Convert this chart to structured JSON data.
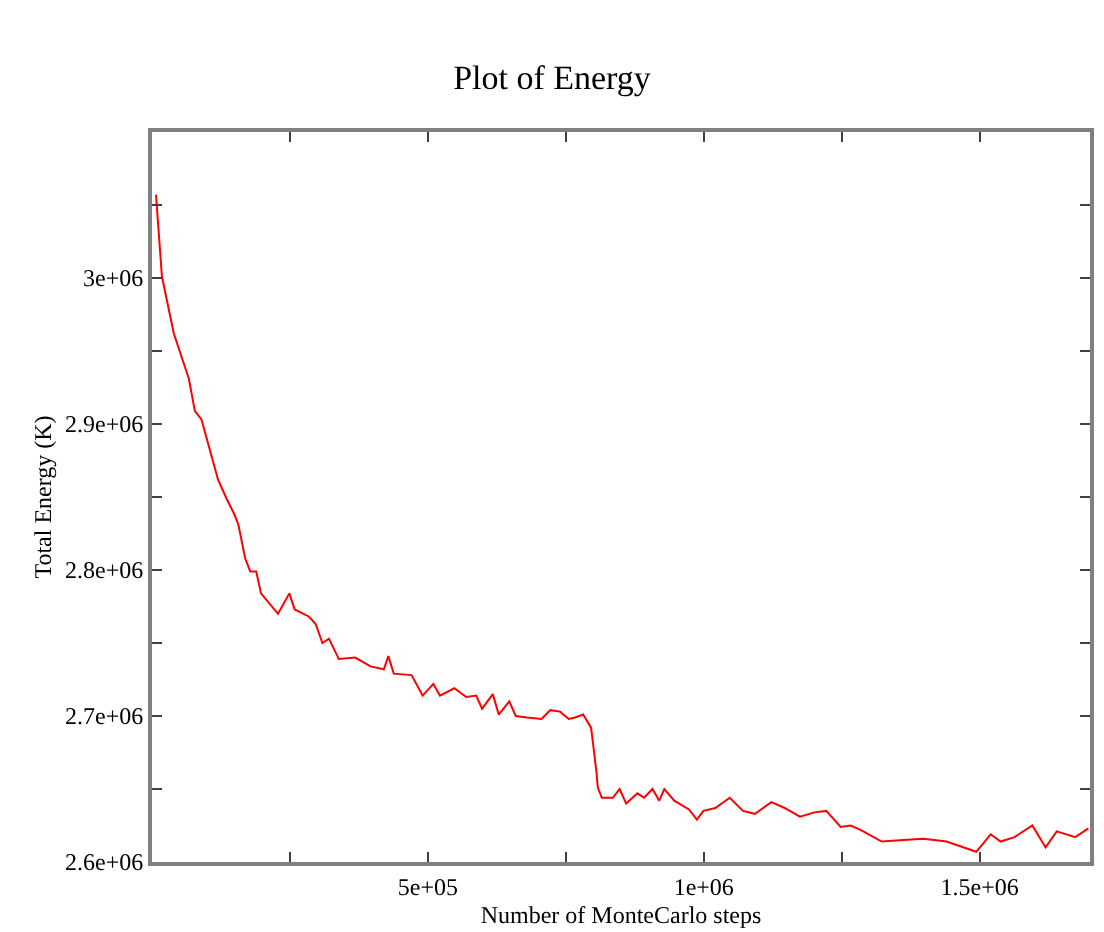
{
  "chart_data": {
    "type": "line",
    "title": "Plot of Energy",
    "xlabel": "Number of MonteCarlo steps",
    "ylabel": "Total Energy (K)",
    "xlim": [
      0,
      1700000
    ],
    "ylim": [
      2600000,
      3100000
    ],
    "xticks": [
      {
        "value": 250000,
        "label": null
      },
      {
        "value": 500000,
        "label": "5e+05"
      },
      {
        "value": 750000,
        "label": null
      },
      {
        "value": 1000000,
        "label": "1e+06"
      },
      {
        "value": 1250000,
        "label": null
      },
      {
        "value": 1500000,
        "label": "1.5e+06"
      }
    ],
    "yticks": [
      {
        "value": 2600000,
        "label": "2.6e+06"
      },
      {
        "value": 2650000,
        "label": null
      },
      {
        "value": 2700000,
        "label": "2.7e+06"
      },
      {
        "value": 2750000,
        "label": null
      },
      {
        "value": 2800000,
        "label": "2.8e+06"
      },
      {
        "value": 2850000,
        "label": null
      },
      {
        "value": 2900000,
        "label": "2.9e+06"
      },
      {
        "value": 2950000,
        "label": null
      },
      {
        "value": 3000000,
        "label": "3e+06"
      },
      {
        "value": 3050000,
        "label": null
      }
    ],
    "marker": "none",
    "line_style": "solid",
    "series": [
      {
        "color": "#ff0000",
        "x": [
          7200,
          18000,
          39500,
          66800,
          77600,
          89800,
          119600,
          135000,
          149400,
          156600,
          168800,
          178100,
          188900,
          197500,
          228400,
          248900,
          258600,
          284800,
          296600,
          308800,
          320700,
          338600,
          368400,
          396100,
          420100,
          428400,
          438100,
          470400,
          490500,
          509900,
          521800,
          548000,
          569500,
          587500,
          598300,
          617700,
          628400,
          647500,
          659300,
          679800,
          706000,
          721800,
          739700,
          755200,
          767000,
          781400,
          795800,
          805400,
          808000,
          815200,
          835300,
          847500,
          859300,
          879800,
          891700,
          907100,
          919300,
          928600,
          946600,
          973200,
          987500,
          999400,
          1020900,
          1047100,
          1071200,
          1092700,
          1122500,
          1146600,
          1174300,
          1200500,
          1222000,
          1248200,
          1266200,
          1284100,
          1322600,
          1362100,
          1398100,
          1440000,
          1493900,
          1520000,
          1538000,
          1563100,
          1595500,
          1619500,
          1639600,
          1673400,
          1697100
        ],
        "values": [
          3057000,
          3001000,
          2962000,
          2931000,
          2909000,
          2903000,
          2862000,
          2849000,
          2838000,
          2831000,
          2808000,
          2799000,
          2799000,
          2784000,
          2770000,
          2784000,
          2773000,
          2768000,
          2763000,
          2750000,
          2753000,
          2739000,
          2740000,
          2734000,
          2732000,
          2741000,
          2729000,
          2728000,
          2714000,
          2722000,
          2714000,
          2719000,
          2713000,
          2714000,
          2705000,
          2715000,
          2701000,
          2710000,
          2700000,
          2699000,
          2698000,
          2704000,
          2703000,
          2698000,
          2699000,
          2701000,
          2692000,
          2662000,
          2651000,
          2644000,
          2644000,
          2650000,
          2640000,
          2647000,
          2644000,
          2650000,
          2642000,
          2650000,
          2642000,
          2636000,
          2629000,
          2635000,
          2637000,
          2644000,
          2635000,
          2633000,
          2641000,
          2637000,
          2631000,
          2634000,
          2635000,
          2624000,
          2625000,
          2622000,
          2614000,
          2615000,
          2616000,
          2614000,
          2607000,
          2619000,
          2614000,
          2617000,
          2625000,
          2610000,
          2621000,
          2617000,
          2623000
        ]
      }
    ]
  }
}
